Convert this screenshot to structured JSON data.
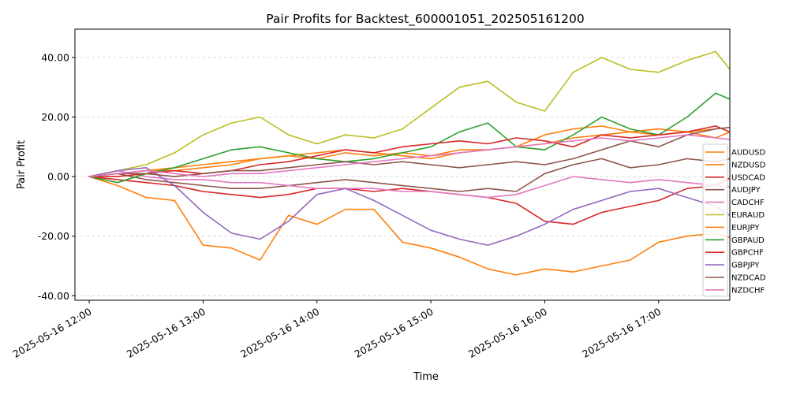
{
  "chart_data": {
    "type": "line",
    "title": "Pair Profits for Backtest_600001051_202505161200",
    "xlabel": "Time",
    "ylabel": "Pair Profit",
    "x_ticks": [
      "2025-05-16 12:00",
      "2025-05-16 13:00",
      "2025-05-16 14:00",
      "2025-05-16 15:00",
      "2025-05-16 16:00",
      "2025-05-16 17:00"
    ],
    "y_ticks": [
      "-40.00",
      "-20.00",
      "0.00",
      "20.00",
      "40.00"
    ],
    "x_range_minutes": [
      -7.5,
      337.5
    ],
    "ylim": [
      -41.5,
      49.5
    ],
    "grid": "horizontal dashed",
    "legend_placement": "bottom-right",
    "sample_interval_minutes": 15,
    "series": [
      {
        "name": "AUDUSD",
        "color": "#ff7f0e",
        "values": [
          0,
          1,
          2,
          2,
          3,
          4,
          6,
          7,
          6,
          8,
          7,
          8,
          7,
          9,
          9,
          10,
          14,
          16,
          17,
          15,
          16,
          15,
          13,
          17
        ]
      },
      {
        "name": "NZDUSD",
        "color": "#ff7f0e",
        "values": [
          0,
          -3,
          -7,
          -8,
          -23,
          -24,
          -28,
          -13,
          -16,
          -11,
          -11,
          -22,
          -24,
          -27,
          -31,
          -33,
          -31,
          -32,
          -30,
          -28,
          -22,
          -20,
          -19,
          -22
        ]
      },
      {
        "name": "USDCAD",
        "color": "#d62728",
        "values": [
          0,
          -1,
          -2,
          -3,
          -5,
          -6,
          -7,
          -6,
          -4,
          -4,
          -5,
          -4,
          -5,
          -6,
          -7,
          -9,
          -15,
          -16,
          -12,
          -10,
          -8,
          -4,
          -3,
          2
        ]
      },
      {
        "name": "AUDJPY",
        "color": "#8c564b",
        "values": [
          0,
          1,
          -1,
          -2,
          -3,
          -4,
          -4,
          -3,
          -2,
          -1,
          -2,
          -3,
          -4,
          -5,
          -4,
          -5,
          1,
          4,
          6,
          3,
          4,
          6,
          5,
          7
        ]
      },
      {
        "name": "CADCHF",
        "color": "#e377c2",
        "values": [
          0,
          2,
          0,
          -1,
          -1,
          -2,
          -2,
          -3,
          -4,
          -4,
          -4,
          -5,
          -5,
          -6,
          -7,
          -6,
          -3,
          0,
          -1,
          -2,
          -1,
          -2,
          -3,
          -4
        ]
      },
      {
        "name": "EURAUD",
        "color": "#bcbd22",
        "values": [
          0,
          2,
          4,
          8,
          14,
          18,
          20,
          14,
          11,
          14,
          13,
          16,
          23,
          30,
          32,
          25,
          22,
          35,
          40,
          36,
          35,
          39,
          42,
          30
        ]
      },
      {
        "name": "EURJPY",
        "color": "#ff7f0e",
        "values": [
          0,
          1,
          2,
          3,
          4,
          5,
          6,
          7,
          8,
          9,
          8,
          7,
          6,
          8,
          9,
          10,
          11,
          13,
          14,
          15,
          14,
          15,
          16,
          17
        ]
      },
      {
        "name": "GBPAUD",
        "color": "#2ca02c",
        "values": [
          0,
          -2,
          1,
          3,
          6,
          9,
          10,
          8,
          6,
          5,
          6,
          8,
          10,
          15,
          18,
          10,
          9,
          14,
          20,
          16,
          14,
          20,
          28,
          24
        ]
      },
      {
        "name": "GBPCHF",
        "color": "#d62728",
        "values": [
          0,
          0,
          1,
          2,
          1,
          2,
          4,
          5,
          7,
          9,
          8,
          10,
          11,
          12,
          11,
          13,
          12,
          10,
          14,
          13,
          14,
          15,
          17,
          13
        ]
      },
      {
        "name": "GBPJPY",
        "color": "#9467bd",
        "values": [
          0,
          2,
          3,
          -3,
          -12,
          -19,
          -21,
          -15,
          -6,
          -4,
          -8,
          -13,
          -18,
          -21,
          -23,
          -20,
          -16,
          -11,
          -8,
          -5,
          -4,
          -7,
          -10,
          -16
        ]
      },
      {
        "name": "NZDCAD",
        "color": "#8c564b",
        "values": [
          0,
          1,
          1,
          0,
          1,
          2,
          2,
          3,
          4,
          5,
          4,
          5,
          4,
          3,
          4,
          5,
          4,
          6,
          9,
          12,
          10,
          14,
          16,
          17
        ]
      },
      {
        "name": "NZDCHF",
        "color": "#e377c2",
        "values": [
          0,
          1,
          2,
          1,
          0,
          1,
          1,
          2,
          3,
          4,
          5,
          6,
          7,
          8,
          9,
          10,
          11,
          12,
          13,
          12,
          13,
          14,
          13,
          12
        ]
      }
    ]
  }
}
